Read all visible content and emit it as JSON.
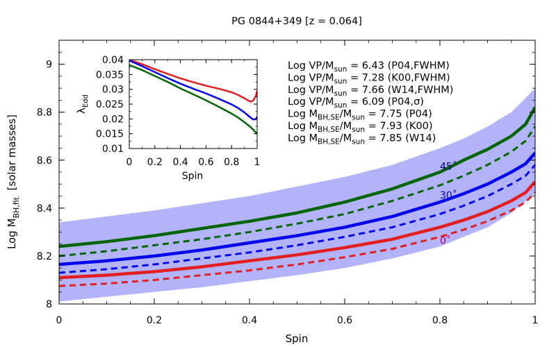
{
  "chart_data": [
    {
      "type": "line",
      "title": "PG 0844+349  [z = 0.064]",
      "xlabel": "Spin",
      "ylabel": "Log M",
      "ylabel_sub": "BH,fit",
      "ylabel_suffix": "  [solar masses]",
      "xlim": [
        0,
        1
      ],
      "ylim": [
        8,
        9.1
      ],
      "xticks": [
        0,
        0.2,
        0.4,
        0.6,
        0.8,
        1
      ],
      "xtick_labels": [
        "0",
        "0.2",
        "0.4",
        "0.6",
        "0.8",
        "1"
      ],
      "yticks": [
        8,
        8.2,
        8.4,
        8.6,
        8.8,
        9
      ],
      "ytick_labels": [
        "8",
        "8.2",
        "8.4",
        "8.6",
        "8.8",
        "9"
      ],
      "band": {
        "color": "#b3b3fa",
        "x": [
          0,
          0.1,
          0.2,
          0.3,
          0.4,
          0.5,
          0.6,
          0.7,
          0.8,
          0.85,
          0.9,
          0.95,
          1.0
        ],
        "lower": [
          8.01,
          8.03,
          8.05,
          8.07,
          8.095,
          8.12,
          8.15,
          8.19,
          8.24,
          8.28,
          8.32,
          8.38,
          8.46
        ],
        "upper": [
          8.34,
          8.365,
          8.39,
          8.42,
          8.45,
          8.49,
          8.53,
          8.58,
          8.65,
          8.69,
          8.74,
          8.8,
          8.9
        ]
      },
      "x": [
        0,
        0.1,
        0.2,
        0.3,
        0.4,
        0.5,
        0.6,
        0.7,
        0.8,
        0.85,
        0.9,
        0.95,
        0.98,
        1.0
      ],
      "series": [
        {
          "color": "#006400",
          "style": "solid",
          "width": 4.5,
          "values": [
            8.24,
            8.26,
            8.285,
            8.315,
            8.345,
            8.38,
            8.425,
            8.48,
            8.55,
            8.6,
            8.645,
            8.7,
            8.75,
            8.82
          ]
        },
        {
          "color": "#006400",
          "style": "dashed",
          "width": 3,
          "values": [
            8.2,
            8.22,
            8.245,
            8.27,
            8.3,
            8.335,
            8.375,
            8.43,
            8.495,
            8.535,
            8.58,
            8.635,
            8.68,
            8.74
          ]
        },
        {
          "color": "#0000ee",
          "style": "solid",
          "width": 4.5,
          "values": [
            8.165,
            8.18,
            8.2,
            8.225,
            8.255,
            8.285,
            8.32,
            8.365,
            8.425,
            8.46,
            8.5,
            8.55,
            8.585,
            8.63
          ]
        },
        {
          "color": "#0000ee",
          "style": "dashed",
          "width": 3,
          "values": [
            8.13,
            8.145,
            8.165,
            8.19,
            8.215,
            8.245,
            8.28,
            8.32,
            8.375,
            8.41,
            8.45,
            8.5,
            8.535,
            8.58
          ]
        },
        {
          "color": "#e21e1e",
          "style": "solid",
          "width": 4.5,
          "values": [
            8.11,
            8.12,
            8.135,
            8.155,
            8.18,
            8.205,
            8.235,
            8.27,
            8.32,
            8.35,
            8.385,
            8.43,
            8.465,
            8.51
          ]
        },
        {
          "color": "#e21e1e",
          "style": "dashed",
          "width": 3,
          "values": [
            8.075,
            8.085,
            8.1,
            8.12,
            8.14,
            8.165,
            8.195,
            8.23,
            8.28,
            8.31,
            8.345,
            8.39,
            8.425,
            8.465
          ]
        }
      ],
      "angle_labels": [
        {
          "text": "45˚",
          "x": 0.8,
          "y": 8.56,
          "color": "#00006e"
        },
        {
          "text": "30˚",
          "x": 0.8,
          "y": 8.44,
          "color": "#0000cc"
        },
        {
          "text": "0˚",
          "x": 0.8,
          "y": 8.25,
          "color": "#aa0077"
        }
      ],
      "annotations": [
        {
          "pre": "Log VP/M",
          "sub": "sun",
          "post": " = 6.43 (P04,FWHM)"
        },
        {
          "pre": "Log VP/M",
          "sub": "sun",
          "post": " = 7.28 (K00,FWHM)"
        },
        {
          "pre": "Log VP/M",
          "sub": "sun",
          "post": " = 7.66 (W14,FWHM)"
        },
        {
          "pre": "Log VP/M",
          "sub": "sun",
          "post": " = 6.09 (P04,σ)"
        },
        {
          "pre": "Log M",
          "sub": "BH,SE",
          "mid": "/M",
          "sub2": "sun",
          "post": " = 7.75 (P04)"
        },
        {
          "pre": "Log M",
          "sub": "BH,SE",
          "mid": "/M",
          "sub2": "sun",
          "post": " = 7.93 (K00)"
        },
        {
          "pre": "Log M",
          "sub": "BH,SE",
          "mid": "/M",
          "sub2": "sun",
          "post": " = 7.85 (W14)"
        }
      ]
    },
    {
      "type": "line",
      "xlabel": "Spin",
      "ylabel": "λ",
      "ylabel_sub": "Edd",
      "xlim": [
        0,
        1
      ],
      "ylim": [
        0.01,
        0.04
      ],
      "xticks": [
        0,
        0.2,
        0.4,
        0.6,
        0.8,
        1
      ],
      "xtick_labels": [
        "0",
        "0.2",
        "0.4",
        "0.6",
        "0.8",
        "1"
      ],
      "yticks": [
        0.01,
        0.015,
        0.02,
        0.025,
        0.03,
        0.035,
        0.04
      ],
      "ytick_labels": [
        "0.01",
        "0.015",
        "0.02",
        "0.025",
        "0.03",
        "0.035",
        "0.04"
      ],
      "series": [
        {
          "color": "#e21e1e",
          "width": 2.5,
          "x": [
            0,
            0.1,
            0.2,
            0.3,
            0.4,
            0.5,
            0.6,
            0.7,
            0.8,
            0.85,
            0.9,
            0.93,
            0.95,
            0.97,
            0.99,
            1.0
          ],
          "values": [
            0.04,
            0.0385,
            0.0368,
            0.0352,
            0.0337,
            0.0324,
            0.0312,
            0.0302,
            0.029,
            0.0281,
            0.027,
            0.0262,
            0.0258,
            0.0263,
            0.0278,
            0.0295
          ]
        },
        {
          "color": "#0000ee",
          "width": 2.5,
          "x": [
            0,
            0.1,
            0.2,
            0.3,
            0.4,
            0.5,
            0.6,
            0.7,
            0.8,
            0.85,
            0.9,
            0.93,
            0.95,
            0.97,
            0.99,
            1.0
          ],
          "values": [
            0.0397,
            0.0378,
            0.0358,
            0.0338,
            0.0319,
            0.0302,
            0.0286,
            0.0268,
            0.0249,
            0.0237,
            0.0222,
            0.0211,
            0.0204,
            0.0198,
            0.0199,
            0.0207
          ]
        },
        {
          "color": "#006400",
          "width": 2.5,
          "x": [
            0,
            0.1,
            0.2,
            0.3,
            0.4,
            0.5,
            0.6,
            0.7,
            0.8,
            0.85,
            0.9,
            0.95,
            1.0
          ],
          "values": [
            0.0382,
            0.0365,
            0.0345,
            0.0325,
            0.0303,
            0.0283,
            0.0263,
            0.0241,
            0.0218,
            0.0205,
            0.0189,
            0.0172,
            0.015
          ]
        }
      ]
    }
  ]
}
